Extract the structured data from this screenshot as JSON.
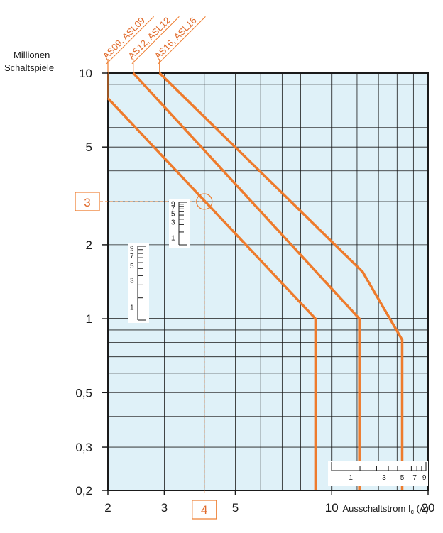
{
  "colors": {
    "plot_bg": "#dff1f8",
    "grid": "#1a1a1a",
    "curve": "#ee7b2c",
    "accent": "#e06a2a"
  },
  "chart_data": {
    "type": "line",
    "scale": "log-log",
    "ylabel_line1": "Millionen",
    "ylabel_line2": "Schaltspiele",
    "xlabel": "Ausschaltstrom I",
    "xlabel_sub": "c",
    "xlabel_unit": " (A)",
    "xlim": [
      2,
      20
    ],
    "ylim": [
      0.2,
      10
    ],
    "x_ticks": [
      {
        "value": 2,
        "label": "2"
      },
      {
        "value": 3,
        "label": "3"
      },
      {
        "value": 5,
        "label": "5"
      },
      {
        "value": 10,
        "label": "10"
      },
      {
        "value": 20,
        "label": "20"
      }
    ],
    "y_ticks": [
      {
        "value": 10,
        "label": "10"
      },
      {
        "value": 5,
        "label": "5"
      },
      {
        "value": 2,
        "label": "2"
      },
      {
        "value": 1,
        "label": "1"
      },
      {
        "value": 0.5,
        "label": "0,5"
      },
      {
        "value": 0.3,
        "label": "0,3"
      },
      {
        "value": 0.2,
        "label": "0,2"
      }
    ],
    "series": [
      {
        "name": "AS09, ASL09",
        "points": [
          [
            2,
            7.9
          ],
          [
            8.9,
            1
          ],
          [
            8.9,
            0.2
          ]
        ]
      },
      {
        "name": "AS12, ASL12",
        "points": [
          [
            2.4,
            10
          ],
          [
            12.2,
            1
          ],
          [
            12.2,
            0.2
          ]
        ]
      },
      {
        "name": "AS16, ASL16",
        "points": [
          [
            2.9,
            10
          ],
          [
            12.5,
            1.55
          ],
          [
            16.6,
            0.82
          ],
          [
            16.6,
            0.2
          ]
        ]
      }
    ],
    "annotation": {
      "x_marker": {
        "value": 4,
        "label": "4"
      },
      "y_marker": {
        "value": 3,
        "label": "3"
      }
    },
    "scale_inset_labels": [
      "9",
      "7",
      "5",
      "3",
      "1"
    ]
  }
}
